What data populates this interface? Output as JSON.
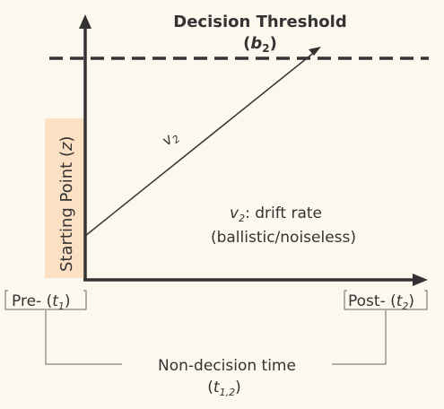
{
  "threshold": {
    "title": "Decision Threshold",
    "symbol": "b",
    "subscript": "2"
  },
  "starting_point": {
    "label": "Starting Point",
    "symbol": "z"
  },
  "drift": {
    "line_label": "v",
    "line_label_sub": "2",
    "legend_symbol": "v",
    "legend_sub": "2",
    "legend_text": ": drift rate",
    "legend_note": "(ballistic/noiseless)"
  },
  "pre": {
    "label": "Pre-",
    "symbol": "t",
    "subscript": "1"
  },
  "post": {
    "label": "Post-",
    "symbol": "t",
    "subscript": "2"
  },
  "nondecision": {
    "label": "Non-decision time",
    "symbol": "t",
    "subscript": "1,2"
  },
  "colors": {
    "background": "#fdf8ee",
    "ink": "#333333",
    "starting_point_band": "#fbe0c4",
    "bracket": "#666666"
  }
}
